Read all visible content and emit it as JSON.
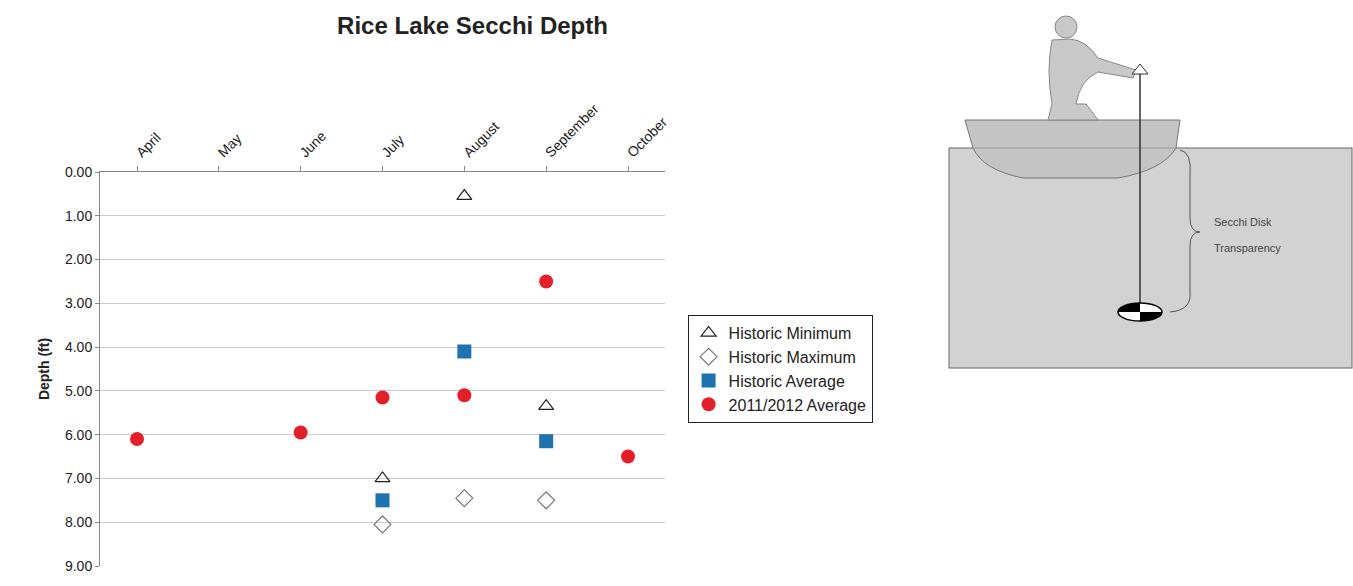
{
  "chart_data": {
    "type": "scatter",
    "title": "Rice Lake Secchi Depth",
    "y_label": "Depth (ft)",
    "categories": [
      "April",
      "May",
      "June",
      "July",
      "August",
      "September",
      "October"
    ],
    "series": [
      {
        "name": "Historic Minimum",
        "color": "#222222",
        "marker": "triangle-open",
        "values": [
          null,
          null,
          null,
          7.0,
          0.55,
          5.35,
          null
        ]
      },
      {
        "name": "Historic Maximum",
        "color": "#777777",
        "marker": "diamond-open",
        "values": [
          null,
          null,
          null,
          8.05,
          7.45,
          7.5,
          null
        ]
      },
      {
        "name": "Historic Average",
        "color": "#1f72b0",
        "marker": "square",
        "values": [
          null,
          null,
          null,
          7.5,
          4.1,
          6.15,
          null
        ]
      },
      {
        "name": "2011/2012 Average",
        "color": "#e3202a",
        "marker": "circle",
        "values": [
          6.1,
          null,
          5.95,
          5.15,
          5.1,
          2.5,
          6.5
        ]
      }
    ],
    "ylim": [
      9,
      0
    ],
    "yticks": [
      {
        "value": 0,
        "label": "0.00"
      },
      {
        "value": 1,
        "label": "1.00"
      },
      {
        "value": 2,
        "label": "2.00"
      },
      {
        "value": 3,
        "label": "3.00"
      },
      {
        "value": 4,
        "label": "4.00"
      },
      {
        "value": 5,
        "label": "5.00"
      },
      {
        "value": 6,
        "label": "6.00"
      },
      {
        "value": 7,
        "label": "7.00"
      },
      {
        "value": 8,
        "label": "8.00"
      },
      {
        "value": 9,
        "label": "9.00"
      }
    ],
    "grid": true,
    "legend": "right"
  },
  "diagram": {
    "label": "Secchi Disk Transparency"
  }
}
